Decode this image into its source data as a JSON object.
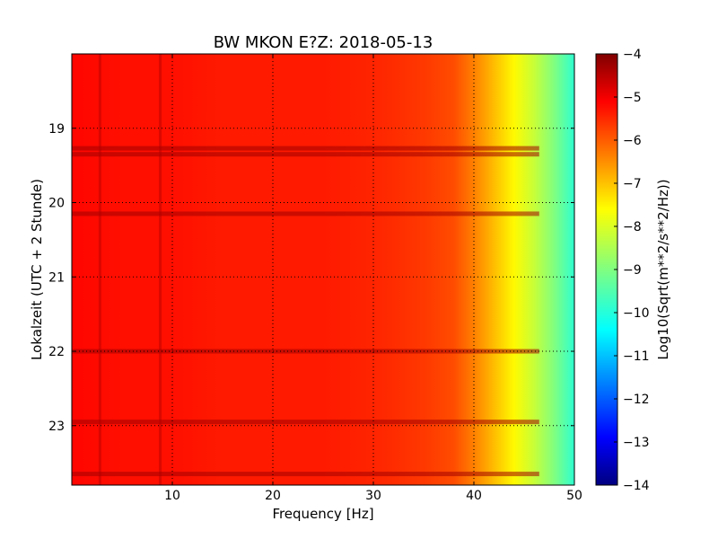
{
  "chart_data": {
    "type": "heatmap",
    "title": "BW MKON E?Z: 2018-05-13",
    "xlabel": "Frequency [Hz]",
    "ylabel": "Lokalzeit (UTC + 2 Stunde)",
    "xlim": [
      0,
      50
    ],
    "ylim": [
      18.0,
      23.8
    ],
    "y_inverted": true,
    "xticks": [
      10,
      20,
      30,
      40,
      50
    ],
    "yticks": [
      19,
      20,
      21,
      22,
      23
    ],
    "grid": true,
    "colormap": "jet",
    "colorbar": {
      "label": "Log10(Sqrt(m**2/s**2/Hz))",
      "min": -14,
      "max": -4,
      "ticks": [
        -4,
        -5,
        -6,
        -7,
        -8,
        -9,
        -10,
        -11,
        -12,
        -13,
        -14
      ]
    },
    "profile": {
      "description_free": true,
      "frequency_hz": [
        0,
        5,
        10,
        15,
        20,
        25,
        30,
        35,
        38,
        40,
        42,
        44,
        46,
        48,
        50
      ],
      "log_amplitude": [
        -5.3,
        -5.4,
        -5.4,
        -5.5,
        -5.5,
        -5.5,
        -5.6,
        -5.8,
        -6.0,
        -6.5,
        -7.1,
        -7.7,
        -8.3,
        -9.0,
        -9.8
      ]
    },
    "dark_bands_hours": [
      19.27,
      19.35,
      20.15,
      22.0,
      22.95,
      23.65
    ],
    "dark_lines_hz": [
      2.8,
      8.8
    ]
  },
  "colors": {
    "jet_dark_red": "#800000",
    "jet_red": "#ff0000",
    "jet_orange": "#ff8000",
    "jet_yellow": "#ffff00",
    "jet_cyan": "#00ffff",
    "jet_blue": "#0000ff",
    "jet_dark_blue": "#000080"
  }
}
